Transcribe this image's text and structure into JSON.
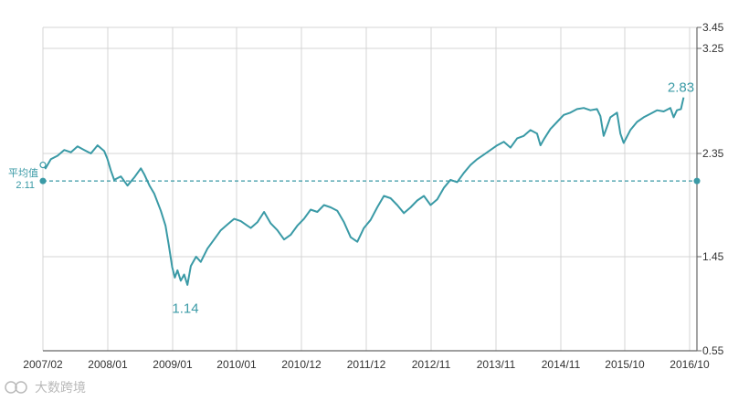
{
  "chart_data": {
    "type": "line",
    "title": "",
    "xlabel": "",
    "ylabel": "",
    "x_tick_labels": [
      "2007/02",
      "2008/01",
      "2009/01",
      "2010/01",
      "2010/12",
      "2011/12",
      "2012/11",
      "2013/11",
      "2014/11",
      "2015/10",
      "2016/10"
    ],
    "y_tick_labels": [
      "3.45",
      "3.25",
      "2.35",
      "1.45",
      "0.55"
    ],
    "ylim": [
      0.55,
      3.45
    ],
    "grid": true,
    "colors": {
      "line": "#3a9aa6",
      "grid": "#d4d4d4",
      "axis": "#666666"
    },
    "series": [
      {
        "values": [
          [
            2007.08,
            2.25
          ],
          [
            2007.12,
            2.22
          ],
          [
            2007.2,
            2.3
          ],
          [
            2007.3,
            2.33
          ],
          [
            2007.4,
            2.38
          ],
          [
            2007.5,
            2.36
          ],
          [
            2007.6,
            2.41
          ],
          [
            2007.7,
            2.38
          ],
          [
            2007.8,
            2.35
          ],
          [
            2007.9,
            2.42
          ],
          [
            2008.0,
            2.37
          ],
          [
            2008.05,
            2.3
          ],
          [
            2008.1,
            2.2
          ],
          [
            2008.15,
            2.12
          ],
          [
            2008.25,
            2.15
          ],
          [
            2008.35,
            2.07
          ],
          [
            2008.45,
            2.14
          ],
          [
            2008.55,
            2.22
          ],
          [
            2008.6,
            2.17
          ],
          [
            2008.68,
            2.07
          ],
          [
            2008.75,
            2.0
          ],
          [
            2008.85,
            1.85
          ],
          [
            2008.92,
            1.72
          ],
          [
            2008.97,
            1.55
          ],
          [
            2009.02,
            1.35
          ],
          [
            2009.06,
            1.25
          ],
          [
            2009.1,
            1.32
          ],
          [
            2009.15,
            1.22
          ],
          [
            2009.2,
            1.28
          ],
          [
            2009.25,
            1.18
          ],
          [
            2009.3,
            1.36
          ],
          [
            2009.38,
            1.45
          ],
          [
            2009.45,
            1.4
          ],
          [
            2009.55,
            1.52
          ],
          [
            2009.65,
            1.6
          ],
          [
            2009.75,
            1.68
          ],
          [
            2009.85,
            1.73
          ],
          [
            2009.95,
            1.78
          ],
          [
            2010.05,
            1.76
          ],
          [
            2010.15,
            1.72
          ],
          [
            2010.2,
            1.7
          ],
          [
            2010.3,
            1.75
          ],
          [
            2010.4,
            1.84
          ],
          [
            2010.5,
            1.74
          ],
          [
            2010.6,
            1.68
          ],
          [
            2010.7,
            1.6
          ],
          [
            2010.8,
            1.64
          ],
          [
            2010.9,
            1.72
          ],
          [
            2011.0,
            1.78
          ],
          [
            2011.1,
            1.86
          ],
          [
            2011.2,
            1.84
          ],
          [
            2011.3,
            1.9
          ],
          [
            2011.4,
            1.88
          ],
          [
            2011.5,
            1.85
          ],
          [
            2011.6,
            1.75
          ],
          [
            2011.7,
            1.62
          ],
          [
            2011.8,
            1.58
          ],
          [
            2011.9,
            1.7
          ],
          [
            2012.0,
            1.77
          ],
          [
            2012.1,
            1.88
          ],
          [
            2012.2,
            1.98
          ],
          [
            2012.3,
            1.96
          ],
          [
            2012.4,
            1.9
          ],
          [
            2012.5,
            1.83
          ],
          [
            2012.6,
            1.88
          ],
          [
            2012.7,
            1.94
          ],
          [
            2012.8,
            1.98
          ],
          [
            2012.9,
            1.9
          ],
          [
            2013.0,
            1.95
          ],
          [
            2013.1,
            2.05
          ],
          [
            2013.2,
            2.12
          ],
          [
            2013.3,
            2.1
          ],
          [
            2013.4,
            2.18
          ],
          [
            2013.5,
            2.25
          ],
          [
            2013.6,
            2.3
          ],
          [
            2013.7,
            2.34
          ],
          [
            2013.8,
            2.38
          ],
          [
            2013.9,
            2.42
          ],
          [
            2014.0,
            2.45
          ],
          [
            2014.1,
            2.4
          ],
          [
            2014.2,
            2.48
          ],
          [
            2014.3,
            2.5
          ],
          [
            2014.4,
            2.55
          ],
          [
            2014.5,
            2.52
          ],
          [
            2014.55,
            2.42
          ],
          [
            2014.6,
            2.47
          ],
          [
            2014.7,
            2.56
          ],
          [
            2014.8,
            2.62
          ],
          [
            2014.9,
            2.68
          ],
          [
            2015.0,
            2.7
          ],
          [
            2015.1,
            2.73
          ],
          [
            2015.2,
            2.74
          ],
          [
            2015.3,
            2.72
          ],
          [
            2015.4,
            2.73
          ],
          [
            2015.45,
            2.67
          ],
          [
            2015.5,
            2.5
          ],
          [
            2015.55,
            2.58
          ],
          [
            2015.6,
            2.66
          ],
          [
            2015.7,
            2.7
          ],
          [
            2015.75,
            2.52
          ],
          [
            2015.8,
            2.44
          ],
          [
            2015.9,
            2.55
          ],
          [
            2016.0,
            2.62
          ],
          [
            2016.1,
            2.66
          ],
          [
            2016.2,
            2.69
          ],
          [
            2016.3,
            2.72
          ],
          [
            2016.4,
            2.71
          ],
          [
            2016.5,
            2.74
          ],
          [
            2016.55,
            2.66
          ],
          [
            2016.6,
            2.72
          ],
          [
            2016.66,
            2.73
          ],
          [
            2016.7,
            2.83
          ]
        ]
      }
    ],
    "average": {
      "label": "平均值",
      "value": 2.11
    },
    "annotations": [
      {
        "text": "1.14",
        "x": 2009.22,
        "y": 1.14
      },
      {
        "text": "2.83",
        "x": 2016.66,
        "y": 2.83
      }
    ],
    "watermark": "大数跨境"
  }
}
